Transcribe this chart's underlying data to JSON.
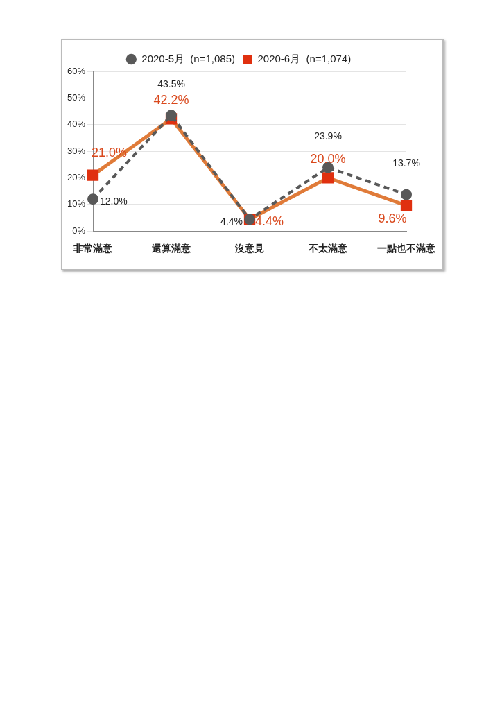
{
  "chart_data": {
    "type": "line",
    "categories": [
      "非常滿意",
      "還算滿意",
      "沒意見",
      "不太滿意",
      "一點也不滿意"
    ],
    "series": [
      {
        "name": "2020-5月  (n=1,085)",
        "color": "#595959",
        "values": [
          12.0,
          43.5,
          4.4,
          23.9,
          13.7
        ],
        "value_labels": [
          "12.0%",
          "43.5%",
          "4.4%",
          "23.9%",
          "13.7%"
        ],
        "line_style": "dashed",
        "marker": "circle"
      },
      {
        "name": "2020-6月  (n=1,074)",
        "color": "#e07b39",
        "values": [
          21.0,
          42.2,
          4.4,
          20.0,
          9.6
        ],
        "value_labels": [
          "21.0%",
          "42.2%",
          "4.4%",
          "20.0%",
          "9.6%"
        ],
        "line_style": "solid",
        "marker": "square"
      }
    ],
    "ylim": [
      0,
      60
    ],
    "yticks": [
      {
        "value": 0,
        "label": "0%"
      },
      {
        "value": 10,
        "label": "10%"
      },
      {
        "value": 20,
        "label": "20%"
      },
      {
        "value": 30,
        "label": "30%"
      },
      {
        "value": 40,
        "label": "40%"
      },
      {
        "value": 50,
        "label": "50%"
      },
      {
        "value": 60,
        "label": "60%"
      }
    ],
    "grid": "y",
    "legend": "top"
  }
}
